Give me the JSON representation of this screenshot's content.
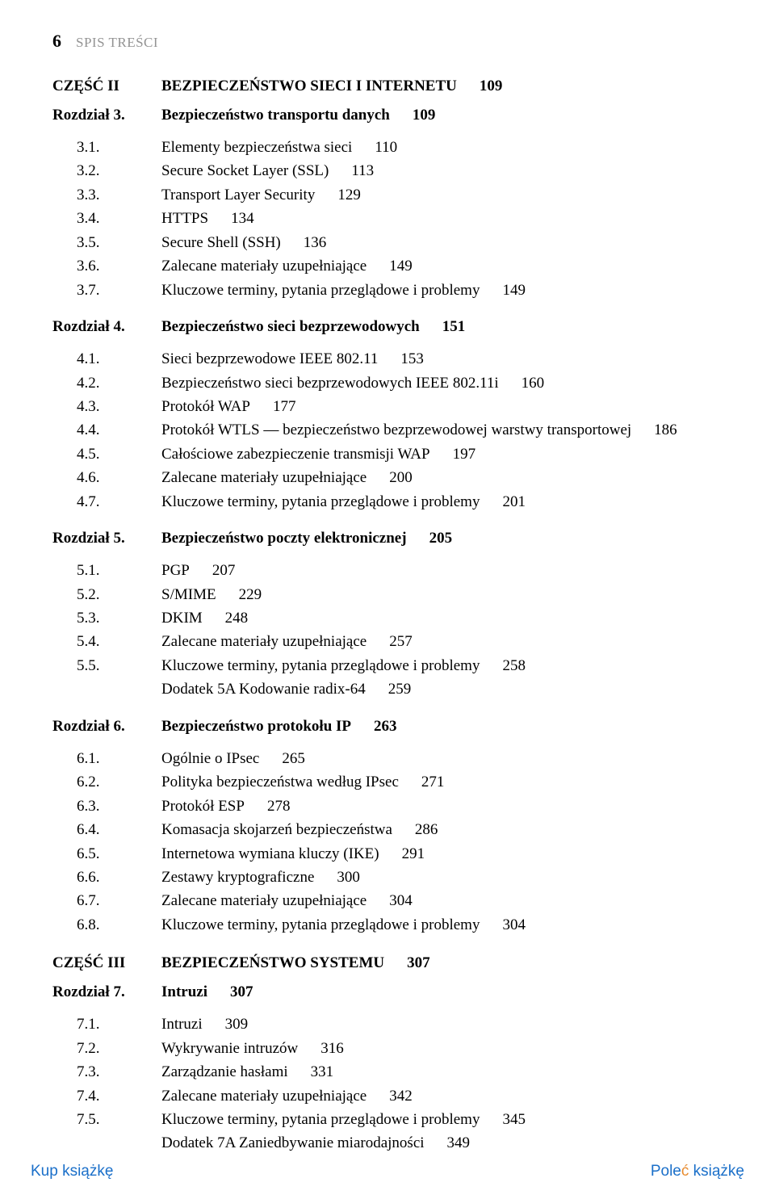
{
  "header": {
    "page_number": "6",
    "label": "SPIS TREŚCI"
  },
  "parts": [
    {
      "label": "CZĘŚĆ II",
      "title": "BEZPIECZEŃSTWO SIECI I INTERNETU",
      "page": "109",
      "chapters": [
        {
          "label": "Rozdział 3.",
          "title": "Bezpieczeństwo transportu danych",
          "page": "109",
          "sections": [
            {
              "num": "3.1.",
              "title": "Elementy bezpieczeństwa sieci",
              "page": "110"
            },
            {
              "num": "3.2.",
              "title": "Secure Socket Layer (SSL)",
              "page": "113"
            },
            {
              "num": "3.3.",
              "title": "Transport Layer Security",
              "page": "129"
            },
            {
              "num": "3.4.",
              "title": "HTTPS",
              "page": "134"
            },
            {
              "num": "3.5.",
              "title": "Secure Shell (SSH)",
              "page": "136"
            },
            {
              "num": "3.6.",
              "title": "Zalecane materiały uzupełniające",
              "page": "149"
            },
            {
              "num": "3.7.",
              "title": "Kluczowe terminy, pytania przeglądowe i problemy",
              "page": "149"
            }
          ],
          "extras": []
        },
        {
          "label": "Rozdział 4.",
          "title": "Bezpieczeństwo sieci bezprzewodowych",
          "page": "151",
          "sections": [
            {
              "num": "4.1.",
              "title": "Sieci bezprzewodowe IEEE 802.11",
              "page": "153"
            },
            {
              "num": "4.2.",
              "title": "Bezpieczeństwo sieci bezprzewodowych IEEE 802.11i",
              "page": "160"
            },
            {
              "num": "4.3.",
              "title": "Protokół WAP",
              "page": "177"
            },
            {
              "num": "4.4.",
              "title": "Protokół WTLS — bezpieczeństwo bezprzewodowej warstwy transportowej",
              "page": "186"
            },
            {
              "num": "4.5.",
              "title": "Całościowe zabezpieczenie transmisji WAP",
              "page": "197"
            },
            {
              "num": "4.6.",
              "title": "Zalecane materiały uzupełniające",
              "page": "200"
            },
            {
              "num": "4.7.",
              "title": "Kluczowe terminy, pytania przeglądowe i problemy",
              "page": "201"
            }
          ],
          "extras": []
        },
        {
          "label": "Rozdział 5.",
          "title": "Bezpieczeństwo poczty elektronicznej",
          "page": "205",
          "sections": [
            {
              "num": "5.1.",
              "title": "PGP",
              "page": "207"
            },
            {
              "num": "5.2.",
              "title": "S/MIME",
              "page": "229"
            },
            {
              "num": "5.3.",
              "title": "DKIM",
              "page": "248"
            },
            {
              "num": "5.4.",
              "title": "Zalecane materiały uzupełniające",
              "page": "257"
            },
            {
              "num": "5.5.",
              "title": "Kluczowe terminy, pytania przeglądowe i problemy",
              "page": "258"
            }
          ],
          "extras": [
            {
              "title": "Dodatek 5A Kodowanie radix-64",
              "page": "259"
            }
          ]
        },
        {
          "label": "Rozdział 6.",
          "title": "Bezpieczeństwo protokołu IP",
          "page": "263",
          "sections": [
            {
              "num": "6.1.",
              "title": "Ogólnie o IPsec",
              "page": "265"
            },
            {
              "num": "6.2.",
              "title": "Polityka bezpieczeństwa według IPsec",
              "page": "271"
            },
            {
              "num": "6.3.",
              "title": "Protokół ESP",
              "page": "278"
            },
            {
              "num": "6.4.",
              "title": "Komasacja skojarzeń bezpieczeństwa",
              "page": "286"
            },
            {
              "num": "6.5.",
              "title": "Internetowa wymiana kluczy (IKE)",
              "page": "291"
            },
            {
              "num": "6.6.",
              "title": "Zestawy kryptograficzne",
              "page": "300"
            },
            {
              "num": "6.7.",
              "title": "Zalecane materiały uzupełniające",
              "page": "304"
            },
            {
              "num": "6.8.",
              "title": "Kluczowe terminy, pytania przeglądowe i problemy",
              "page": "304"
            }
          ],
          "extras": []
        }
      ]
    },
    {
      "label": "CZĘŚĆ III",
      "title": "BEZPIECZEŃSTWO SYSTEMU",
      "page": "307",
      "chapters": [
        {
          "label": "Rozdział 7.",
          "title": "Intruzi",
          "page": "307",
          "sections": [
            {
              "num": "7.1.",
              "title": "Intruzi",
              "page": "309"
            },
            {
              "num": "7.2.",
              "title": "Wykrywanie intruzów",
              "page": "316"
            },
            {
              "num": "7.3.",
              "title": "Zarządzanie hasłami",
              "page": "331"
            },
            {
              "num": "7.4.",
              "title": "Zalecane materiały uzupełniające",
              "page": "342"
            },
            {
              "num": "7.5.",
              "title": "Kluczowe terminy, pytania przeglądowe i problemy",
              "page": "345"
            }
          ],
          "extras": [
            {
              "title": "Dodatek 7A Zaniedbywanie miarodajności",
              "page": "349"
            }
          ]
        }
      ]
    }
  ],
  "footer": {
    "left": "Kup książkę",
    "right_prefix": "Pole",
    "right_accent": "ć",
    "right_suffix": " książkę"
  }
}
